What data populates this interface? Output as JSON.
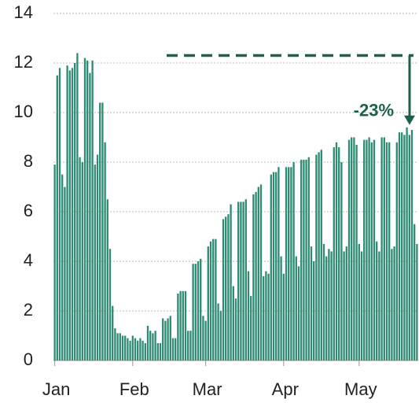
{
  "chart_data": {
    "type": "bar",
    "color": "#2e8b73",
    "categories": [
      "Jan",
      null,
      null,
      null,
      null,
      null,
      null,
      null,
      null,
      null,
      null,
      null,
      null,
      null,
      null,
      null,
      null,
      null,
      null,
      null,
      null,
      null,
      null,
      null,
      null,
      null,
      null,
      null,
      null,
      null,
      null,
      "Feb",
      null,
      null,
      null,
      null,
      null,
      null,
      null,
      null,
      null,
      null,
      null,
      null,
      null,
      null,
      null,
      null,
      null,
      null,
      null,
      null,
      null,
      null,
      null,
      null,
      null,
      null,
      null,
      null,
      "Mar",
      null,
      null,
      null,
      null,
      null,
      null,
      null,
      null,
      null,
      null,
      null,
      null,
      null,
      null,
      null,
      null,
      null,
      null,
      null,
      null,
      null,
      null,
      null,
      null,
      null,
      null,
      null,
      null,
      null,
      null,
      "Apr",
      null,
      null,
      null,
      null,
      null,
      null,
      null,
      null,
      null,
      null,
      null,
      null,
      null,
      null,
      null,
      null,
      null,
      null,
      null,
      null,
      null,
      null,
      null,
      null,
      null,
      null,
      null,
      null,
      null,
      "May",
      null,
      null,
      null,
      null,
      null,
      null,
      null,
      null,
      null,
      null,
      null,
      null,
      null,
      null,
      null,
      null,
      null,
      null,
      null,
      null,
      null,
      null,
      null
    ],
    "values": [
      7.9,
      11.5,
      11.8,
      7.5,
      7.0,
      11.9,
      11.7,
      11.8,
      12.0,
      12.4,
      8.2,
      8.0,
      12.2,
      12.1,
      11.6,
      12.1,
      7.9,
      8.3,
      10.4,
      10.4,
      8.8,
      6.5,
      4.5,
      2.2,
      1.3,
      1.1,
      1.1,
      1.0,
      1.0,
      0.9,
      0.8,
      1.0,
      0.9,
      0.8,
      0.9,
      0.8,
      0.7,
      1.4,
      1.2,
      1.1,
      1.2,
      0.7,
      0.7,
      1.7,
      1.6,
      1.7,
      1.8,
      0.9,
      0.9,
      2.7,
      2.8,
      2.8,
      2.8,
      1.2,
      1.2,
      3.9,
      3.9,
      4.0,
      4.1,
      1.8,
      1.6,
      4.6,
      4.8,
      4.9,
      4.9,
      2.3,
      2.0,
      5.7,
      5.8,
      5.9,
      6.3,
      3.0,
      2.5,
      6.4,
      6.4,
      6.4,
      6.5,
      3.6,
      2.6,
      6.7,
      6.8,
      7.0,
      7.1,
      3.4,
      3.6,
      3.5,
      7.5,
      7.6,
      7.6,
      7.8,
      4.2,
      3.5,
      7.8,
      7.8,
      7.8,
      8.0,
      4.2,
      3.8,
      8.1,
      8.1,
      8.1,
      8.2,
      4.6,
      4.0,
      8.3,
      8.4,
      8.5,
      4.7,
      4.2,
      4.5,
      4.4,
      8.6,
      8.8,
      8.6,
      8.0,
      4.4,
      4.6,
      8.9,
      9.0,
      9.0,
      8.7,
      4.7,
      4.4,
      8.9,
      8.9,
      9.0,
      8.8,
      8.9,
      4.8,
      4.4,
      9.0,
      9.0,
      8.8,
      8.8,
      4.5,
      4.6,
      8.8,
      9.2,
      9.2,
      9.1,
      9.4,
      9.1,
      9.3,
      5.5,
      4.7
    ],
    "ylim": [
      0,
      14
    ],
    "yticks": [
      0,
      2,
      4,
      6,
      8,
      10,
      12,
      14
    ],
    "grid": true,
    "annotation": {
      "label": "-23%",
      "level": 12.3,
      "arrow_to": 9.5,
      "color": "#1f5f4e"
    }
  }
}
